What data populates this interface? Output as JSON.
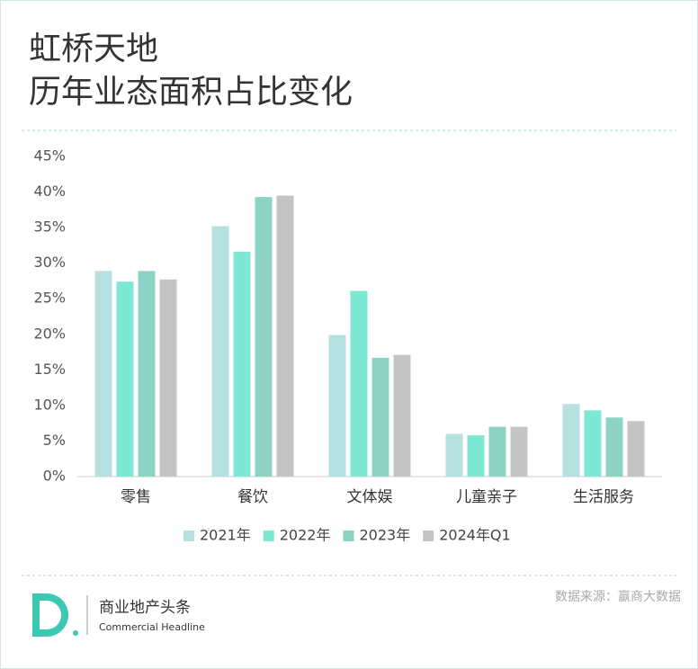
{
  "chart_data": {
    "type": "bar",
    "title": "虹桥天地",
    "subtitle": "历年业态面积占比变化",
    "categories": [
      "零售",
      "餐饮",
      "文体娱",
      "儿童亲子",
      "生活服务"
    ],
    "series": [
      {
        "name": "2021年",
        "color": "#b7e0e0",
        "values": [
          28.9,
          35.2,
          19.9,
          6.0,
          10.2
        ]
      },
      {
        "name": "2022年",
        "color": "#7de8d4",
        "values": [
          27.4,
          31.6,
          26.1,
          5.8,
          9.3
        ]
      },
      {
        "name": "2023年",
        "color": "#8dd3c4",
        "values": [
          28.9,
          39.3,
          16.7,
          7.0,
          8.3
        ]
      },
      {
        "name": "2024年Q1",
        "color": "#c4c4c4",
        "values": [
          27.7,
          39.5,
          17.1,
          7.0,
          7.8
        ]
      }
    ],
    "ylim": [
      0,
      45
    ],
    "yticks": [
      {
        "value": 0,
        "label": "0%"
      },
      {
        "value": 5,
        "label": "5%"
      },
      {
        "value": 10,
        "label": "10%"
      },
      {
        "value": 15,
        "label": "15%"
      },
      {
        "value": 20,
        "label": "20%"
      },
      {
        "value": 25,
        "label": "25%"
      },
      {
        "value": 30,
        "label": "30%"
      },
      {
        "value": 35,
        "label": "35%"
      },
      {
        "value": 40,
        "label": "40%"
      },
      {
        "value": 45,
        "label": "45%"
      }
    ],
    "grid": false,
    "legend": "bottom",
    "source": "数据来源：赢商大数据"
  },
  "brand": {
    "name": "商业地产头条",
    "name_en": "Commercial Headline"
  }
}
